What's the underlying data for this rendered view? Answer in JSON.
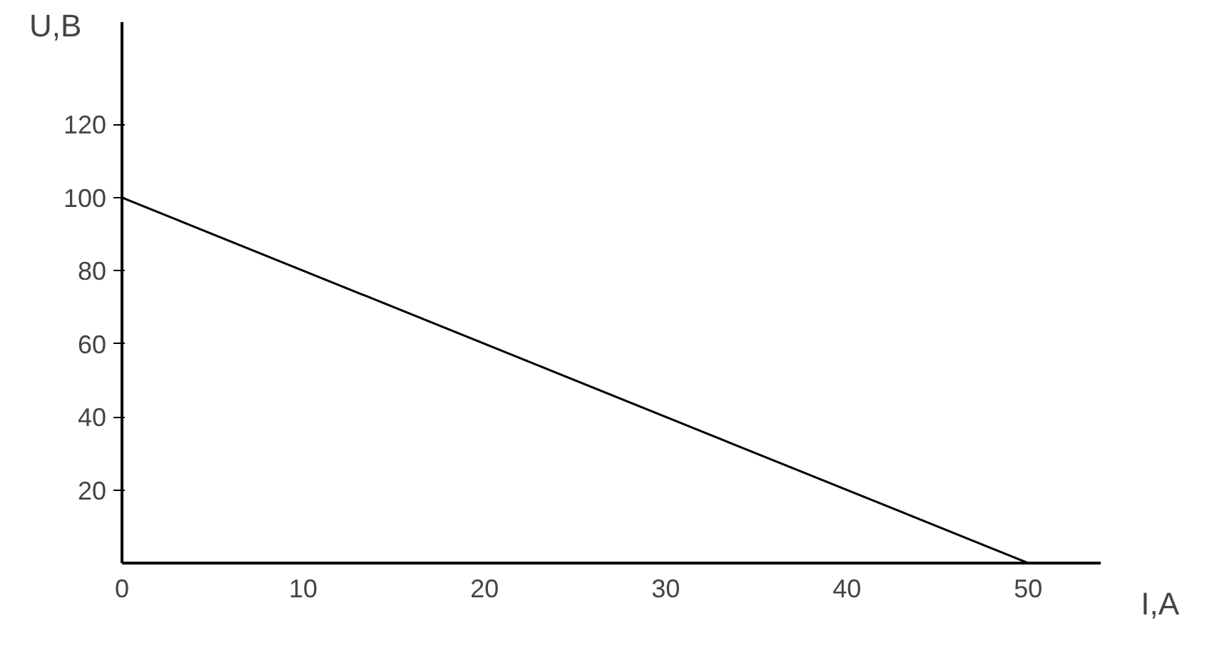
{
  "chart_data": {
    "type": "line",
    "xlabel": "I,A",
    "ylabel": "U,B",
    "x": [
      0,
      50
    ],
    "series": [
      {
        "color": "#000000",
        "values": [
          100,
          0
        ]
      }
    ],
    "xlim": [
      0,
      54
    ],
    "ylim": [
      0,
      148
    ],
    "xticks": [
      0,
      10,
      20,
      30,
      40,
      50
    ],
    "yticks": [
      20,
      40,
      60,
      80,
      100,
      120
    ],
    "grid": false,
    "marker": "none",
    "line_style": "solid"
  }
}
